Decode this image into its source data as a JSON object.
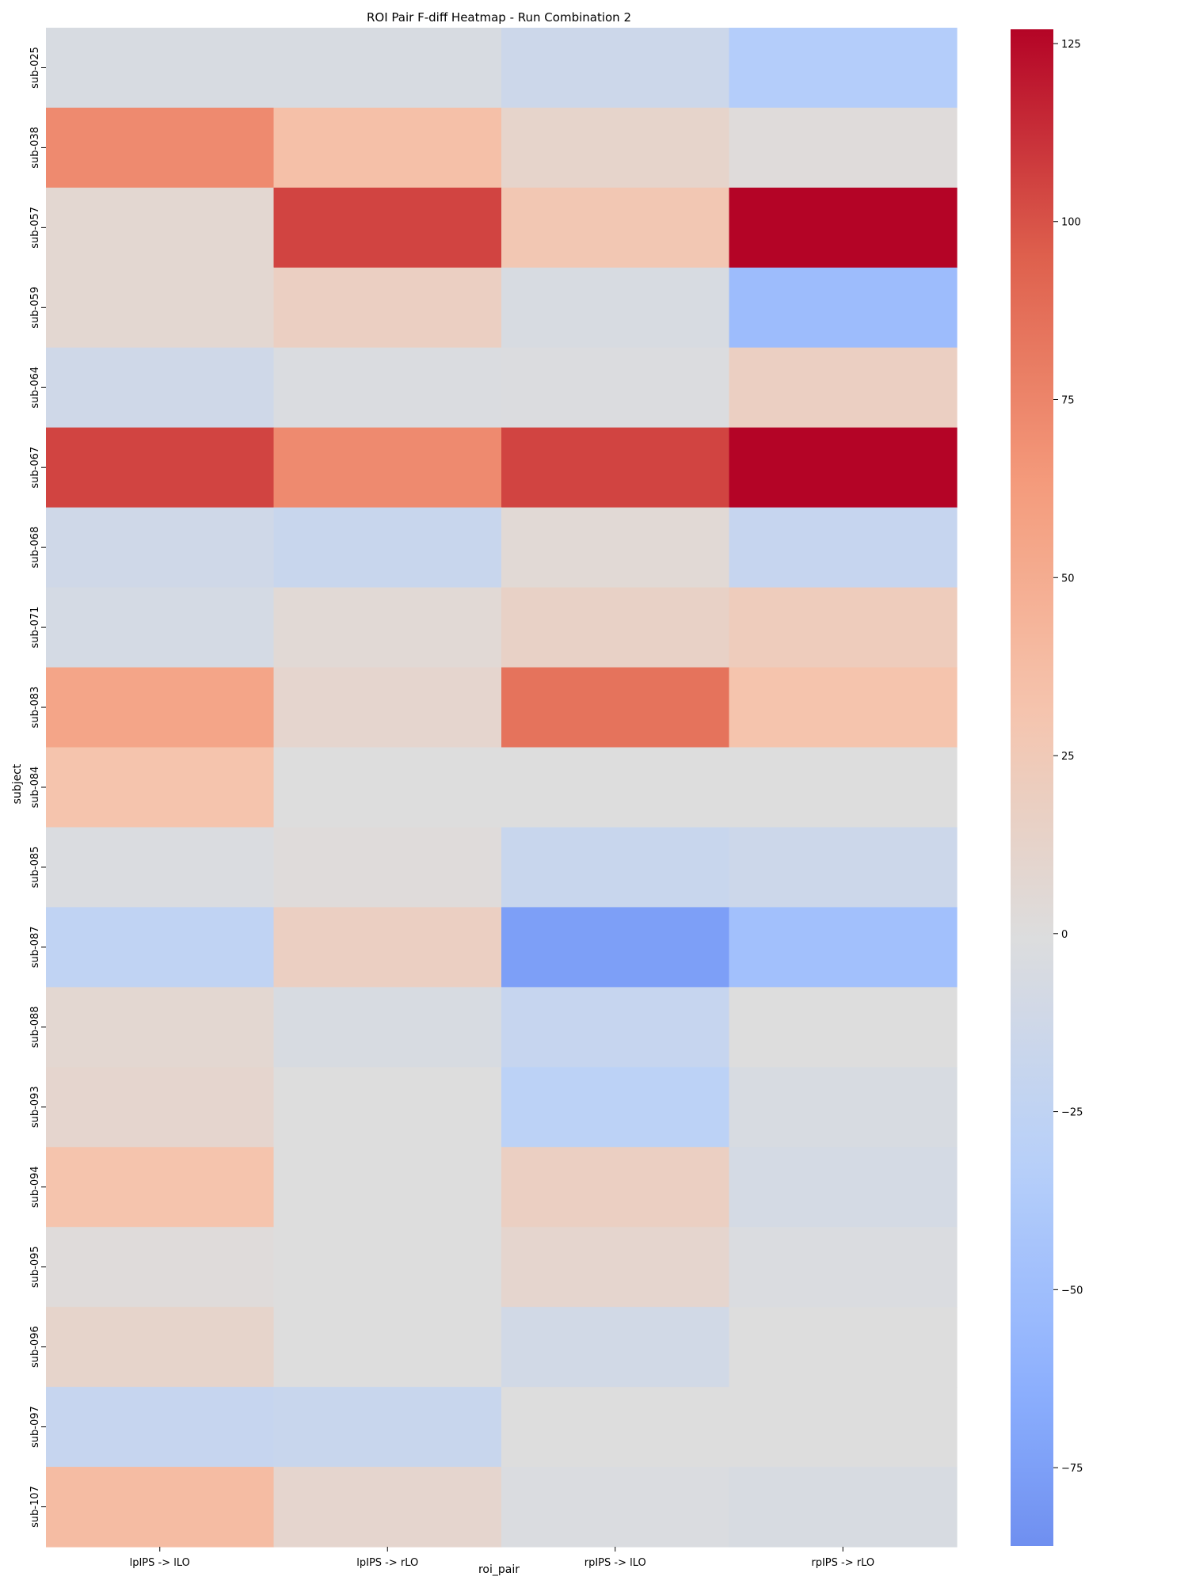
{
  "chart_data": {
    "type": "heatmap",
    "title": "ROI Pair F-diff Heatmap - Run Combination 2",
    "xlabel": "roi_pair",
    "ylabel": "subject",
    "x_categories": [
      "lpIPS -> lLO",
      "lpIPS -> rLO",
      "rpIPS -> lLO",
      "rpIPS -> rLO"
    ],
    "y_categories": [
      "sub-025",
      "sub-038",
      "sub-057",
      "sub-059",
      "sub-064",
      "sub-067",
      "sub-068",
      "sub-071",
      "sub-083",
      "sub-084",
      "sub-085",
      "sub-087",
      "sub-088",
      "sub-093",
      "sub-094",
      "sub-095",
      "sub-096",
      "sub-097",
      "sub-107"
    ],
    "values": [
      [
        -5,
        -5,
        -15,
        -35
      ],
      [
        72,
        35,
        12,
        2
      ],
      [
        8,
        105,
        28,
        127
      ],
      [
        8,
        18,
        -5,
        -52
      ],
      [
        -12,
        -3,
        -2,
        18
      ],
      [
        105,
        72,
        105,
        127
      ],
      [
        -12,
        -18,
        5,
        -20
      ],
      [
        -8,
        5,
        15,
        22
      ],
      [
        55,
        10,
        85,
        32
      ],
      [
        32,
        0,
        0,
        0
      ],
      [
        -3,
        2,
        -18,
        -15
      ],
      [
        -25,
        18,
        -75,
        -48
      ],
      [
        8,
        -5,
        -20,
        0
      ],
      [
        10,
        0,
        -28,
        -5
      ],
      [
        32,
        0,
        18,
        -8
      ],
      [
        2,
        0,
        10,
        -3
      ],
      [
        12,
        0,
        -10,
        0
      ],
      [
        -20,
        -18,
        0,
        0
      ],
      [
        38,
        10,
        -3,
        -5
      ]
    ],
    "colorbar": {
      "vmin": -86,
      "vmax": 127,
      "center": 0,
      "colormap": "coolwarm",
      "ticks": [
        -75,
        -50,
        -25,
        0,
        25,
        50,
        75,
        100,
        125
      ],
      "tick_labels": [
        "−75",
        "−50",
        "−25",
        "0",
        "25",
        "50",
        "75",
        "100",
        "125"
      ]
    }
  }
}
